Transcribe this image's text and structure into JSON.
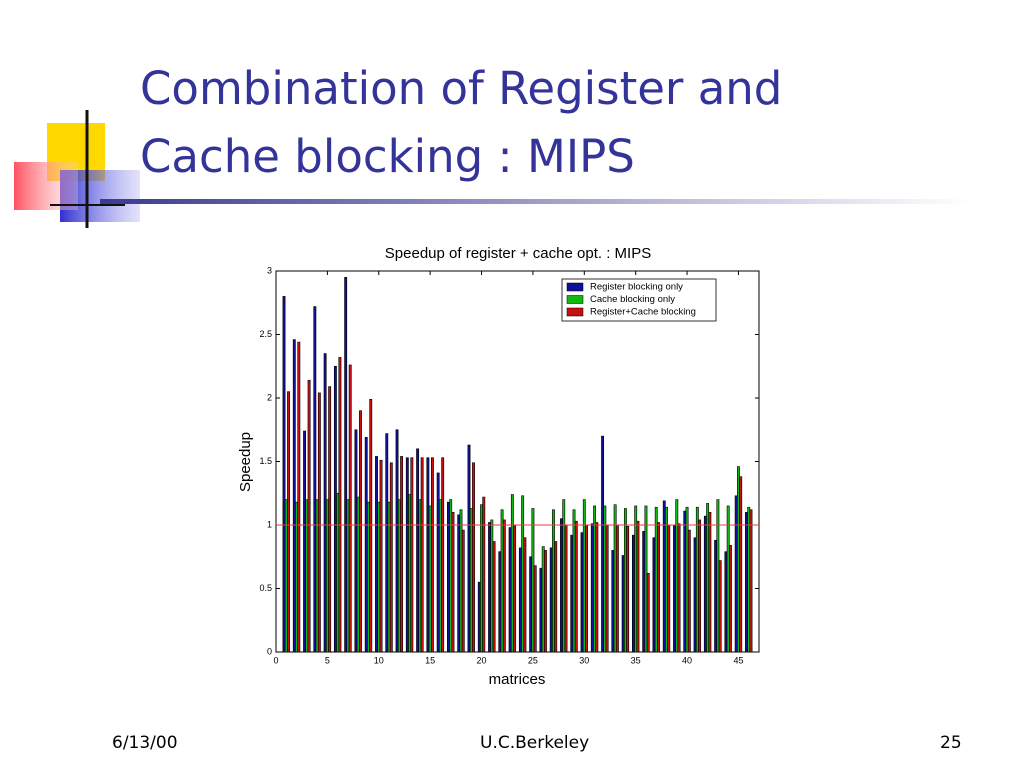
{
  "slide": {
    "title": [
      "Combination of Register and",
      "Cache blocking : MIPS"
    ],
    "footer": {
      "date": "6/13/00",
      "source": "U.C.Berkeley",
      "page": "25"
    }
  },
  "chart_data": {
    "type": "grouped-bar",
    "title": "Speedup of register + cache opt. : MIPS",
    "x_label": "matrices",
    "y_label": "Speedup",
    "x": [
      1,
      2,
      3,
      4,
      5,
      6,
      7,
      8,
      9,
      10,
      11,
      12,
      13,
      14,
      15,
      16,
      17,
      18,
      19,
      20,
      21,
      22,
      23,
      24,
      25,
      26,
      27,
      28,
      29,
      30,
      31,
      32,
      33,
      34,
      35,
      36,
      37,
      38,
      39,
      40,
      41,
      42,
      43,
      44,
      45,
      46
    ],
    "series": [
      {
        "name": "Register blocking only",
        "color": "#10109a",
        "values": [
          2.8,
          2.46,
          1.74,
          2.72,
          2.35,
          2.25,
          2.95,
          1.75,
          1.69,
          1.54,
          1.72,
          1.75,
          1.53,
          1.6,
          1.53,
          1.41,
          1.18,
          1.08,
          1.63,
          0.55,
          1.02,
          0.79,
          0.98,
          0.82,
          0.75,
          0.66,
          0.82,
          1.05,
          0.92,
          0.94,
          1.01,
          1.7,
          0.8,
          0.76,
          0.92,
          0.95,
          0.9,
          1.19,
          1.0,
          1.11,
          0.9,
          1.07,
          0.88,
          0.79,
          1.23,
          1.1
        ]
      },
      {
        "name": "Cache blocking only",
        "color": "#10b810",
        "values": [
          1.2,
          1.18,
          1.2,
          1.2,
          1.2,
          1.25,
          1.2,
          1.22,
          1.18,
          1.18,
          1.18,
          1.2,
          1.24,
          1.2,
          1.15,
          1.2,
          1.2,
          1.12,
          1.13,
          1.16,
          1.04,
          1.12,
          1.24,
          1.23,
          1.13,
          0.83,
          1.12,
          1.2,
          1.12,
          1.2,
          1.15,
          1.15,
          1.16,
          1.13,
          1.15,
          1.15,
          1.14,
          1.14,
          1.2,
          1.14,
          1.14,
          1.17,
          1.2,
          1.15,
          1.46,
          1.14
        ]
      },
      {
        "name": "Register+Cache blocking",
        "color": "#c81010",
        "values": [
          2.05,
          2.44,
          2.14,
          2.04,
          2.09,
          2.32,
          2.26,
          1.9,
          1.99,
          1.51,
          1.49,
          1.54,
          1.53,
          1.53,
          1.53,
          1.53,
          1.1,
          0.96,
          1.49,
          1.22,
          0.87,
          1.04,
          1.0,
          0.9,
          0.68,
          0.8,
          0.87,
          1.0,
          1.03,
          1.0,
          1.02,
          1.0,
          1.0,
          0.99,
          1.03,
          0.62,
          1.02,
          1.0,
          1.01,
          0.96,
          1.04,
          1.1,
          0.72,
          0.84,
          1.38,
          1.12
        ]
      }
    ],
    "reference_line": {
      "value": 1,
      "color": "#e04040"
    },
    "xlim": [
      0,
      47
    ],
    "xticks": [
      0,
      5,
      10,
      15,
      20,
      25,
      30,
      35,
      40,
      45
    ],
    "ylim": [
      0,
      3
    ],
    "yticks": [
      0,
      0.5,
      1,
      1.5,
      2,
      2.5,
      3
    ],
    "legend": "upper-right"
  }
}
